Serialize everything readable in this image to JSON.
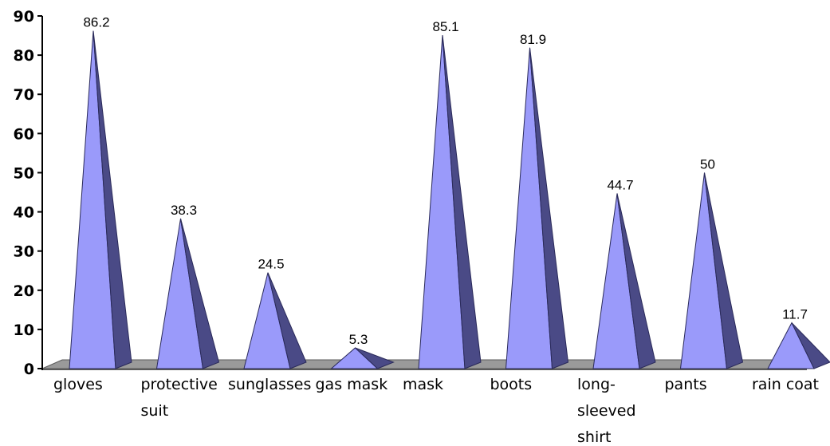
{
  "chart_data": {
    "type": "bar",
    "style": "3d-cone",
    "categories": [
      "gloves",
      "protective suit",
      "sunglasses",
      "gas mask",
      "mask",
      "boots",
      "long-sleeved shirt",
      "pants",
      "rain coat"
    ],
    "category_lines": [
      [
        "gloves"
      ],
      [
        "protective",
        "suit"
      ],
      [
        "sunglasses"
      ],
      [
        "gas mask"
      ],
      [
        "mask"
      ],
      [
        "boots"
      ],
      [
        "long-",
        "sleeved",
        "shirt"
      ],
      [
        "pants"
      ],
      [
        "rain coat"
      ]
    ],
    "values": [
      86.2,
      38.3,
      24.5,
      5.3,
      85.1,
      81.9,
      44.7,
      50,
      11.7
    ],
    "data_labels": [
      "86.2",
      "38.3",
      "24.5",
      "5.3",
      "85.1",
      "81.9",
      "44.7",
      "50",
      "11.7"
    ],
    "ylim": [
      0,
      90
    ],
    "yticks": [
      0,
      10,
      20,
      30,
      40,
      50,
      60,
      70,
      80,
      90
    ],
    "grid": false,
    "legend": "none",
    "colors": {
      "cone_front": "#9a9afa",
      "cone_side": "#4a4a86",
      "floor_top": "#9a9a9a",
      "floor_edge": "#5a5a5a",
      "axis": "#000000"
    }
  }
}
